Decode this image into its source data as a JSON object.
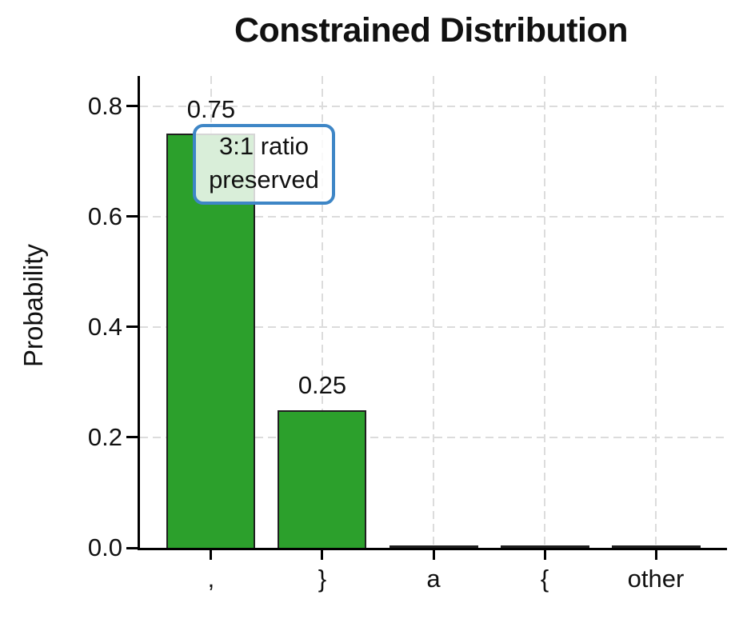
{
  "chart_data": {
    "type": "bar",
    "title": "Constrained Distribution",
    "xlabel": "",
    "ylabel": "Probability",
    "categories": [
      ",",
      "}",
      "a",
      "{",
      "other"
    ],
    "values": [
      0.75,
      0.25,
      0,
      0,
      0
    ],
    "bar_value_labels": [
      "0.75",
      "0.25",
      "",
      "",
      ""
    ],
    "yticks": [
      0.0,
      0.2,
      0.4,
      0.6,
      0.8
    ],
    "ytick_labels": [
      "0.0",
      "0.2",
      "0.4",
      "0.6",
      "0.8"
    ],
    "ylim": [
      0,
      0.855
    ],
    "xlim": [
      -0.64,
      4.64
    ],
    "bar_width_units": 0.8,
    "grid": "dashed-both-axes",
    "legend": "none",
    "colors": {
      "bar_fill": "#2ca02c",
      "bar_edge": "#1f1f1f",
      "gridline": "#dcdcdc",
      "axis": "#000000",
      "text": "#111111",
      "annotation_border": "#3e86c6",
      "annotation_bg": "rgba(255,255,255,0.82)"
    },
    "annotation": {
      "lines": [
        "3:1 ratio",
        "preserved"
      ],
      "attached_to_category": ","
    }
  }
}
